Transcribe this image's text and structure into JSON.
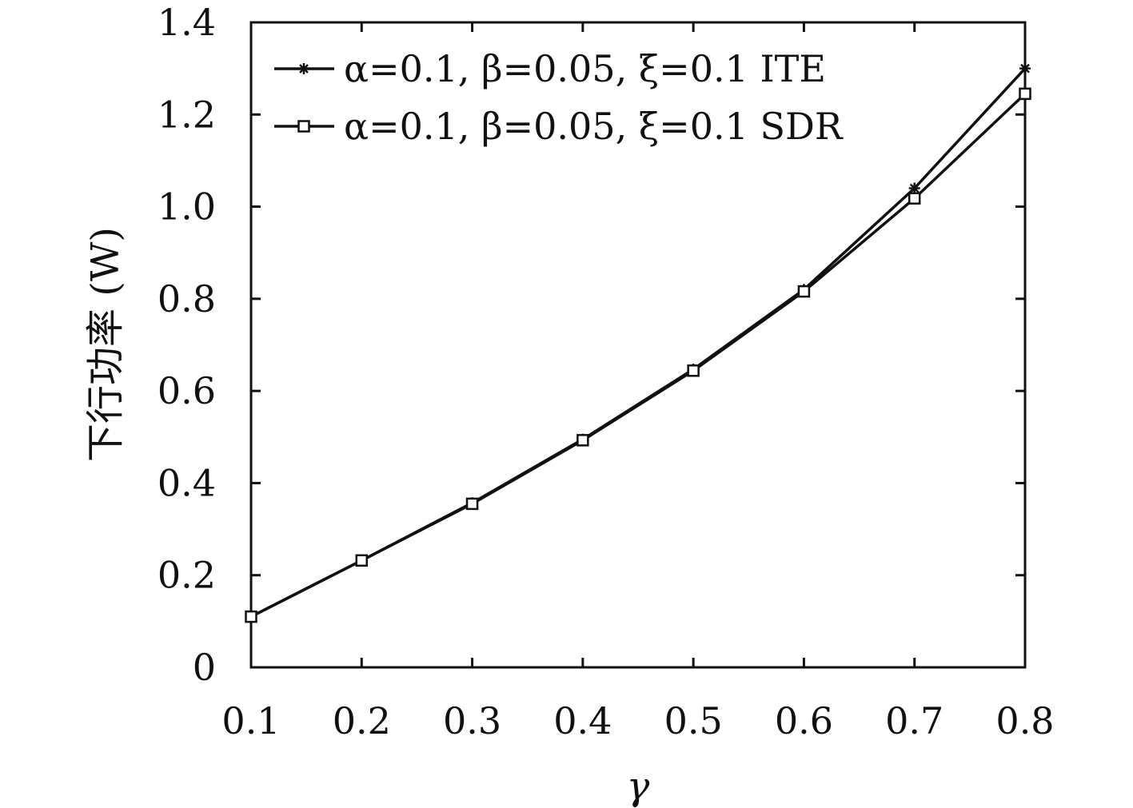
{
  "chart_data": {
    "type": "line",
    "title": "",
    "xlabel": "γ",
    "ylabel": "下行功率 (W)",
    "xlim": [
      0.1,
      0.8
    ],
    "ylim": [
      0,
      1.4
    ],
    "x_ticks": [
      "0.1",
      "0.2",
      "0.3",
      "0.4",
      "0.5",
      "0.6",
      "0.7",
      "0.8"
    ],
    "y_ticks": [
      "0",
      "0.2",
      "0.4",
      "0.6",
      "0.8",
      "1.0",
      "1.2",
      "1.4"
    ],
    "grid": false,
    "legend_position": "top-left",
    "x": [
      0.1,
      0.2,
      0.3,
      0.4,
      0.5,
      0.6,
      0.7,
      0.8
    ],
    "series": [
      {
        "name": "α=0.1, β=0.05, ξ=0.1 ITE",
        "marker": "asterisk",
        "color": "#111111",
        "values": [
          0.11,
          0.232,
          0.357,
          0.495,
          0.647,
          0.82,
          1.04,
          1.3
        ]
      },
      {
        "name": "α=0.1, β=0.05, ξ=0.1 SDR",
        "marker": "open-square",
        "color": "#111111",
        "values": [
          0.11,
          0.232,
          0.355,
          0.493,
          0.644,
          0.816,
          1.018,
          1.245
        ]
      }
    ]
  }
}
